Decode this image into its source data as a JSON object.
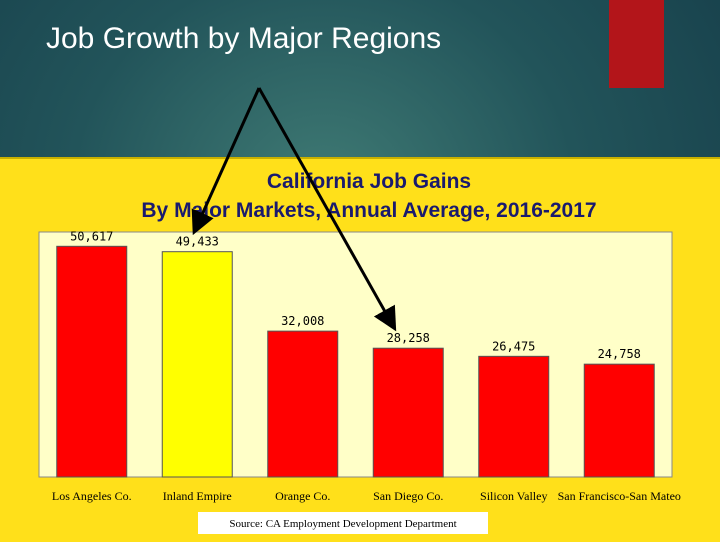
{
  "slide": {
    "title": "Job Growth by Major Regions"
  },
  "colors": {
    "accent": "#b3151a",
    "panel": "#ffe01a",
    "plot_area": "#ffffc8",
    "bar": "#ff0000",
    "bar_highlight": "#ffff00",
    "arrow": "#000000"
  },
  "chart_data": {
    "type": "bar",
    "title": "California Job Gains",
    "subtitle": "By Major Markets, Annual Average, 2016-2017",
    "categories": [
      "Los Angeles Co.",
      "Inland Empire",
      "Orange Co.",
      "San Diego Co.",
      "Silicon Valley",
      "San Francisco-San Mateo"
    ],
    "values": [
      50617,
      49433,
      32008,
      28258,
      26475,
      24758
    ],
    "value_labels": [
      "50,617",
      "49,433",
      "32,008",
      "28,258",
      "26,475",
      "24,758"
    ],
    "highlight": [
      "Inland Empire"
    ],
    "arrows_point_to": [
      "Inland Empire",
      "San Diego Co."
    ],
    "ylim": [
      0,
      52000
    ],
    "grid": false,
    "legend": "none",
    "source": "Source:   CA Employment Development Department"
  }
}
